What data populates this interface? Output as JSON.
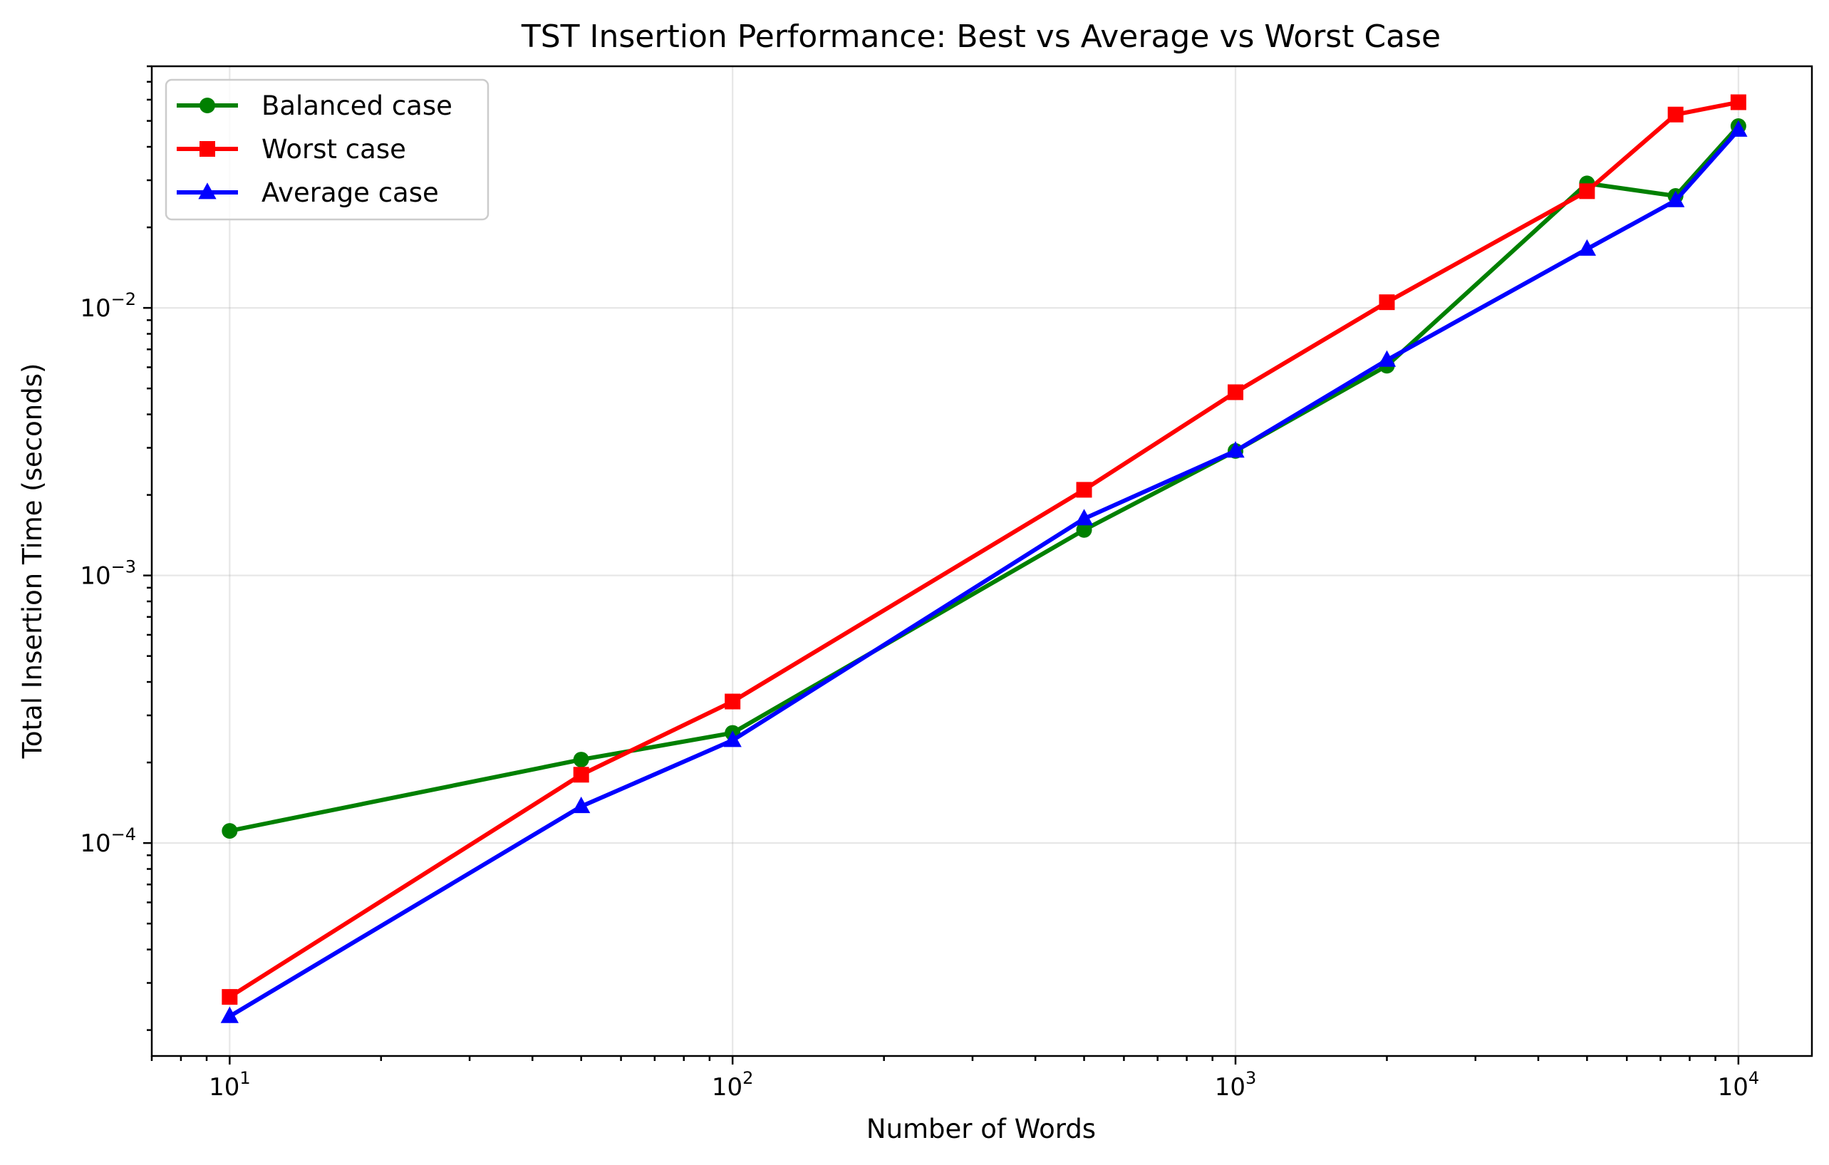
{
  "chart_data": {
    "type": "line",
    "title": "TST Insertion Performance: Best vs Average vs Worst Case",
    "xlabel": "Number of Words",
    "ylabel": "Total Insertion Time (seconds)",
    "xscale": "log",
    "yscale": "log",
    "xlim": [
      7,
      14000
    ],
    "ylim": [
      1.6e-05,
      0.08
    ],
    "grid": true,
    "legend_position": "upper-left",
    "x_ticks": [
      {
        "value": 10,
        "base": "10",
        "exp": "1"
      },
      {
        "value": 100,
        "base": "10",
        "exp": "2"
      },
      {
        "value": 1000,
        "base": "10",
        "exp": "3"
      },
      {
        "value": 10000,
        "base": "10",
        "exp": "4"
      }
    ],
    "y_ticks": [
      {
        "value": 0.0001,
        "base": "10",
        "exp": "−4"
      },
      {
        "value": 0.001,
        "base": "10",
        "exp": "−3"
      },
      {
        "value": 0.01,
        "base": "10",
        "exp": "−2"
      }
    ],
    "x": [
      10,
      50,
      100,
      500,
      1000,
      2000,
      5000,
      7500,
      10000
    ],
    "series": [
      {
        "name": "Balanced case",
        "color": "#008000",
        "marker": "circle",
        "values": [
          0.000111,
          0.000205,
          0.000258,
          0.00148,
          0.00292,
          0.00608,
          0.0292,
          0.0262,
          0.0478
        ]
      },
      {
        "name": "Worst case",
        "color": "#ff0000",
        "marker": "square",
        "values": [
          2.66e-05,
          0.00018,
          0.000338,
          0.00209,
          0.00484,
          0.0105,
          0.0273,
          0.0528,
          0.0587
        ]
      },
      {
        "name": "Average case",
        "color": "#0000ff",
        "marker": "triangle",
        "values": [
          2.25e-05,
          0.000137,
          0.000242,
          0.00163,
          0.00292,
          0.00638,
          0.0166,
          0.0252,
          0.0462
        ]
      }
    ]
  }
}
